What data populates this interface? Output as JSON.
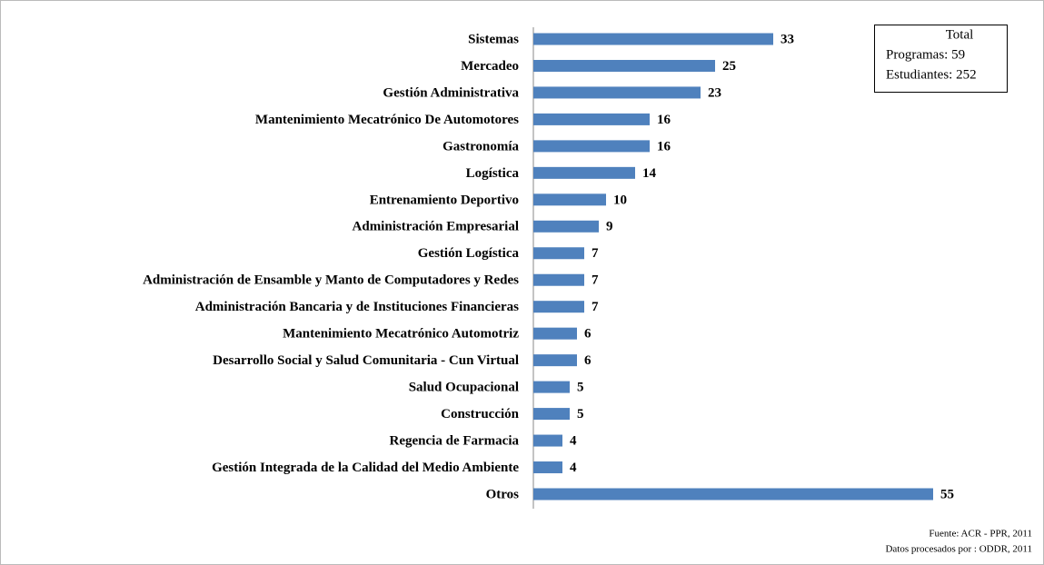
{
  "chart_data": {
    "type": "barh",
    "categories": [
      "Sistemas",
      "Mercadeo",
      "Gestión Administrativa",
      "Mantenimiento Mecatrónico De Automotores",
      "Gastronomía",
      "Logística",
      "Entrenamiento Deportivo",
      "Administración Empresarial",
      "Gestión Logística",
      "Administración de Ensamble y Manto de Computadores y Redes",
      "Administración Bancaria y de Instituciones Financieras",
      "Mantenimiento Mecatrónico Automotriz",
      "Desarrollo Social y Salud Comunitaria - Cun Virtual",
      "Salud Ocupacional",
      "Construcción",
      "Regencia de Farmacia",
      "Gestión Integrada de la Calidad del Medio Ambiente",
      "Otros"
    ],
    "values": [
      33,
      25,
      23,
      16,
      16,
      14,
      10,
      9,
      7,
      7,
      7,
      6,
      6,
      5,
      5,
      4,
      4,
      55
    ],
    "color": "#4f81bd",
    "summary_box": [
      "Total",
      "Programas: 59",
      "Estudiantes: 252"
    ],
    "source": [
      "Fuente: ACR - PPR, 2011",
      "Datos procesados por : ODDR, 2011"
    ]
  }
}
